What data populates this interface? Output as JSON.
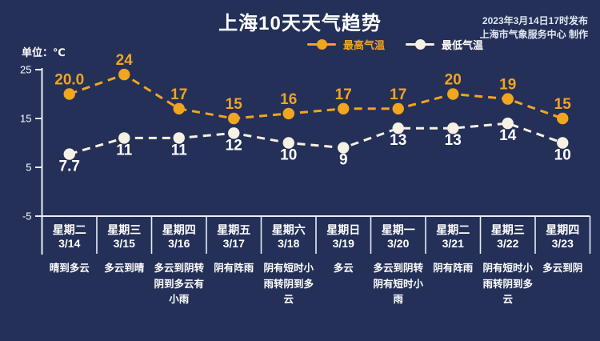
{
  "header": {
    "title": "上海10天天气趋势",
    "publish_line1": "2023年3月14日17时发布",
    "publish_line2": "上海市气象服务中心 制作"
  },
  "legend": {
    "high_label": "最高气温",
    "low_label": "最低气温"
  },
  "axis": {
    "unit_label": "单位：℃",
    "ticks": [
      25,
      15,
      5,
      -5
    ]
  },
  "colors": {
    "background": "#243058",
    "high": "#F2A51F",
    "low_dot": "#F6F1E4",
    "low_label": "#FFFFFF",
    "axis_line": "#E9EDF5",
    "publish_text": "#DFE5F0"
  },
  "chart_data": {
    "type": "line",
    "title": "上海10天天气趋势",
    "ylabel": "℃",
    "ylim": [
      -5,
      25
    ],
    "ytick_interval": 10,
    "grid": false,
    "legend_position": "top-center",
    "line_style": "dashed",
    "categories": [
      {
        "day": "星期二",
        "date": "3/14",
        "weather": "晴到多云"
      },
      {
        "day": "星期三",
        "date": "3/15",
        "weather": "多云到晴"
      },
      {
        "day": "星期四",
        "date": "3/16",
        "weather": "多云到阴转阴到多云有小雨"
      },
      {
        "day": "星期五",
        "date": "3/17",
        "weather": "阴有阵雨"
      },
      {
        "day": "星期六",
        "date": "3/18",
        "weather": "阴有短时小雨转阴到多云"
      },
      {
        "day": "星期日",
        "date": "3/19",
        "weather": "多云"
      },
      {
        "day": "星期一",
        "date": "3/20",
        "weather": "多云到阴转阴有短时小雨"
      },
      {
        "day": "星期二",
        "date": "3/21",
        "weather": "阴有阵雨"
      },
      {
        "day": "星期三",
        "date": "3/22",
        "weather": "阴有短时小雨转阴到多云"
      },
      {
        "day": "星期四",
        "date": "3/23",
        "weather": "多云到阴"
      }
    ],
    "series": [
      {
        "name": "最高气温",
        "values": [
          20.0,
          24,
          17,
          15,
          16,
          17,
          17,
          20,
          19,
          15
        ],
        "labels": [
          "20.0",
          "24",
          "17",
          "15",
          "16",
          "17",
          "17",
          "20",
          "19",
          "15"
        ],
        "color": "#F2A51F",
        "label_color": "#F2A51F"
      },
      {
        "name": "最低气温",
        "values": [
          7.7,
          11,
          11,
          12,
          10,
          9,
          13,
          13,
          14,
          10
        ],
        "labels": [
          "7.7",
          "11",
          "11",
          "12",
          "10",
          "9",
          "13",
          "13",
          "14",
          "10"
        ],
        "color": "#F6F1E4",
        "label_color": "#FFFFFF"
      }
    ]
  }
}
